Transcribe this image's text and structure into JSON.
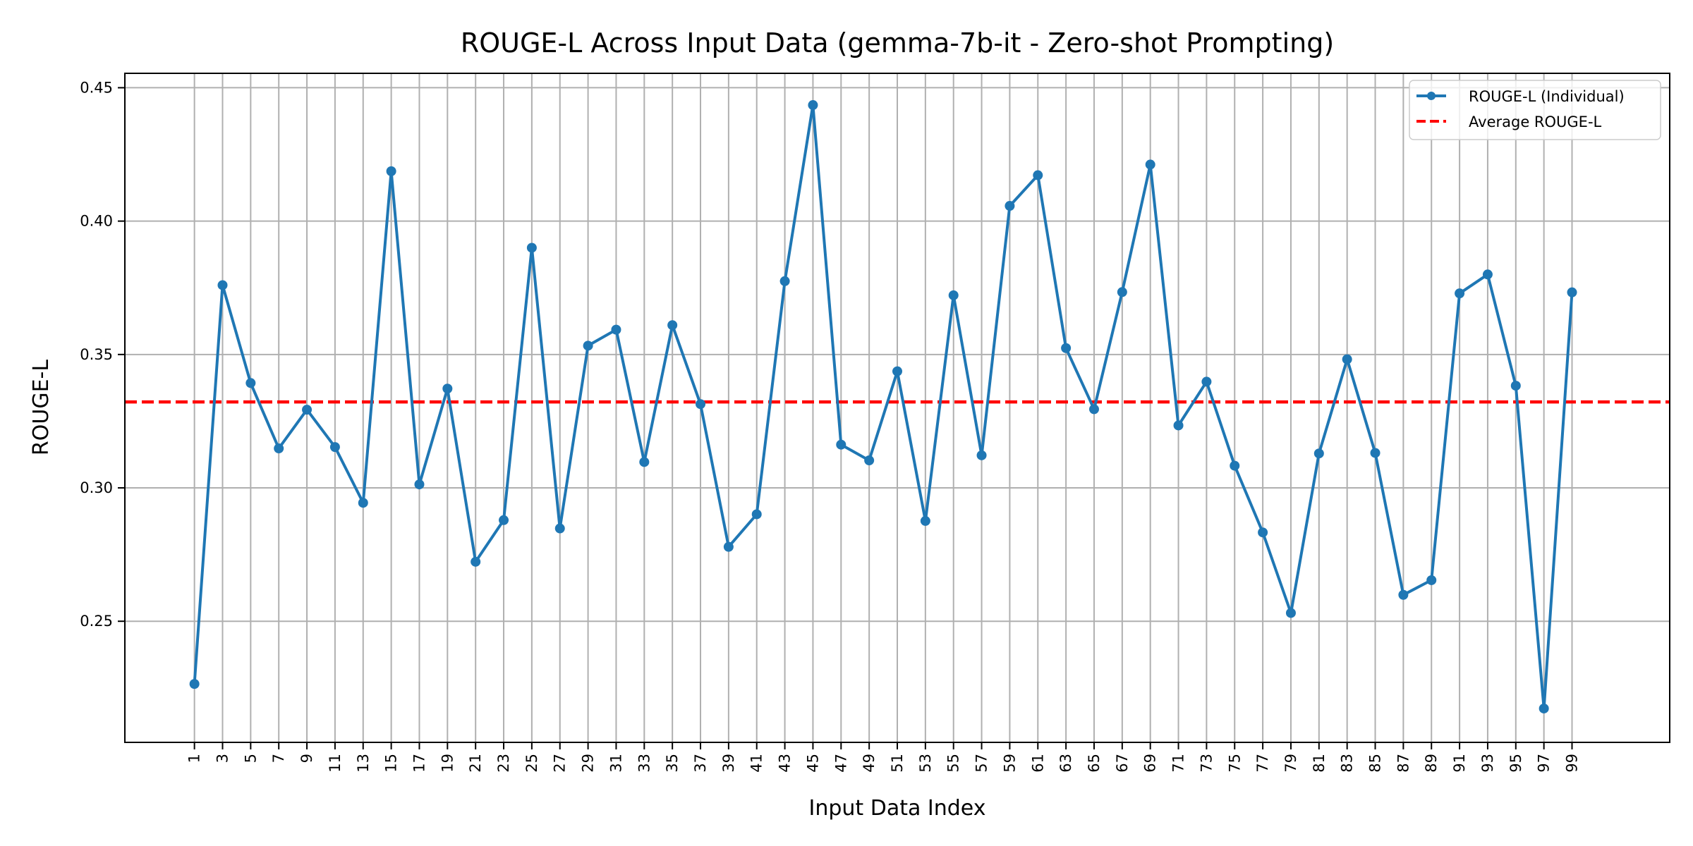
{
  "chart_data": {
    "type": "line",
    "title": "ROUGE-L Across Input Data (gemma-7b-it - Zero-shot Prompting)",
    "xlabel": "Input Data Index",
    "ylabel": "ROUGE-L",
    "x": [
      1,
      3,
      5,
      7,
      9,
      11,
      13,
      15,
      17,
      19,
      21,
      23,
      25,
      27,
      29,
      31,
      33,
      35,
      37,
      39,
      41,
      43,
      45,
      47,
      49,
      51,
      53,
      55,
      57,
      59,
      61,
      63,
      65,
      67,
      69,
      71,
      73,
      75,
      77,
      79,
      81,
      83,
      85,
      87,
      89,
      91,
      93,
      95,
      97,
      99
    ],
    "xtick_labels": [
      "1",
      "3",
      "5",
      "7",
      "9",
      "11",
      "13",
      "15",
      "17",
      "19",
      "21",
      "23",
      "25",
      "27",
      "29",
      "31",
      "33",
      "35",
      "37",
      "39",
      "41",
      "43",
      "45",
      "47",
      "49",
      "51",
      "53",
      "55",
      "57",
      "59",
      "61",
      "63",
      "65",
      "67",
      "69",
      "71",
      "73",
      "75",
      "77",
      "79",
      "81",
      "83",
      "85",
      "87",
      "89",
      "91",
      "93",
      "95",
      "97",
      "99"
    ],
    "yticks": [
      0.25,
      0.3,
      0.35,
      0.4,
      0.45
    ],
    "ytick_labels": [
      "0.25",
      "0.30",
      "0.35",
      "0.40",
      "0.45"
    ],
    "xlim": [
      -3.95,
      105.95
    ],
    "ylim": [
      0.2046,
      0.4554
    ],
    "grid": true,
    "legend_position": "top-right",
    "series": [
      {
        "name": "ROUGE-L (Individual)",
        "color": "#1f77b4",
        "style": "line-marker",
        "values": [
          0.2265,
          0.376,
          0.3393,
          0.3148,
          0.3293,
          0.3153,
          0.2944,
          0.4187,
          0.3013,
          0.3372,
          0.2723,
          0.2879,
          0.39,
          0.2848,
          0.3533,
          0.3593,
          0.3097,
          0.361,
          0.3314,
          0.2779,
          0.2901,
          0.3775,
          0.4435,
          0.3162,
          0.3103,
          0.3437,
          0.2876,
          0.3722,
          0.3122,
          0.4057,
          0.4172,
          0.3524,
          0.3295,
          0.3734,
          0.4212,
          0.3234,
          0.3398,
          0.3083,
          0.2833,
          0.2531,
          0.3129,
          0.3482,
          0.3131,
          0.2599,
          0.2654,
          0.3729,
          0.38,
          0.3383,
          0.2173,
          0.3733
        ]
      }
    ],
    "reference_lines": [
      {
        "name": "Average ROUGE-L",
        "color": "#ff0000",
        "style": "dashed",
        "value": 0.3322
      }
    ]
  }
}
